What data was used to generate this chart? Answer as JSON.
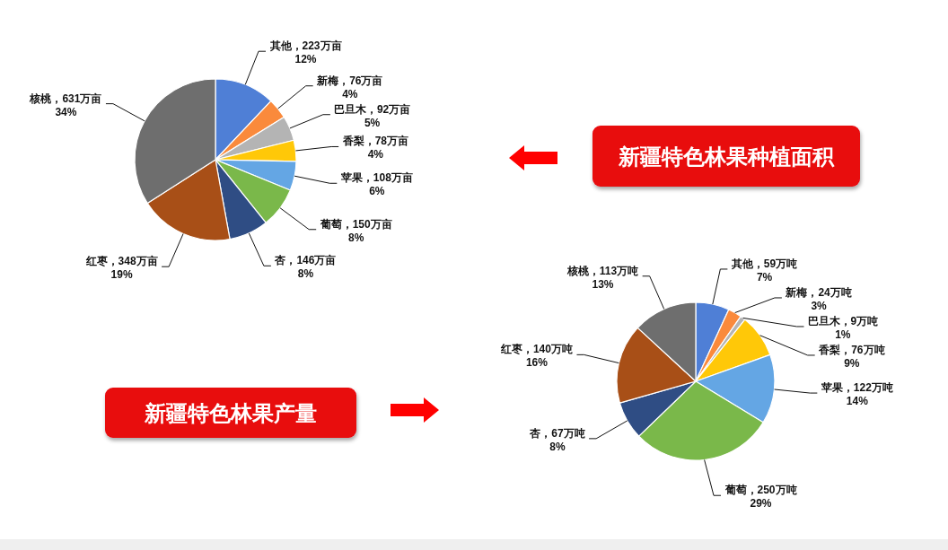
{
  "chart_data": [
    {
      "type": "pie",
      "title": "新疆特色林果种植面积",
      "categories": [
        "其他",
        "新梅",
        "巴旦木",
        "香梨",
        "苹果",
        "葡萄",
        "杏",
        "红枣",
        "核桃"
      ],
      "values": [
        223,
        76,
        92,
        78,
        108,
        150,
        146,
        348,
        631
      ],
      "colors": [
        "#4f7fd6",
        "#fa8a3c",
        "#b4b4b4",
        "#ffc808",
        "#64a6e4",
        "#7ab84a",
        "#2f4d84",
        "#a84f17",
        "#6e6e6e"
      ],
      "value_labels": [
        "，223万亩\n12%",
        "，76万亩\n4%",
        "，92万亩\n5%",
        "，78万亩\n4%",
        "，108万亩\n6%",
        "，150万亩\n8%",
        "，146万亩\n8%",
        "，348万亩\n19%",
        "，631万亩\n34%"
      ]
    },
    {
      "type": "pie",
      "title": "新疆特色林果产量",
      "categories": [
        "其他",
        "新梅",
        "巴旦木",
        "香梨",
        "苹果",
        "葡萄",
        "杏",
        "红枣",
        "核桃"
      ],
      "values": [
        59,
        24,
        9,
        76,
        122,
        250,
        67,
        140,
        113
      ],
      "colors": [
        "#4f7fd6",
        "#fa8a3c",
        "#b4b4b4",
        "#ffc808",
        "#64a6e4",
        "#7ab84a",
        "#2f4d84",
        "#a84f17",
        "#6e6e6e"
      ],
      "value_labels": [
        "，59万吨\n7%",
        "，24万吨\n3%",
        "，9万吨\n1%",
        "，76万吨\n9%",
        "，122万吨\n14%",
        "，250万吨\n29%",
        "，67万吨\n8%",
        "，140万吨\n16%",
        "，113万吨\n13%"
      ]
    }
  ]
}
